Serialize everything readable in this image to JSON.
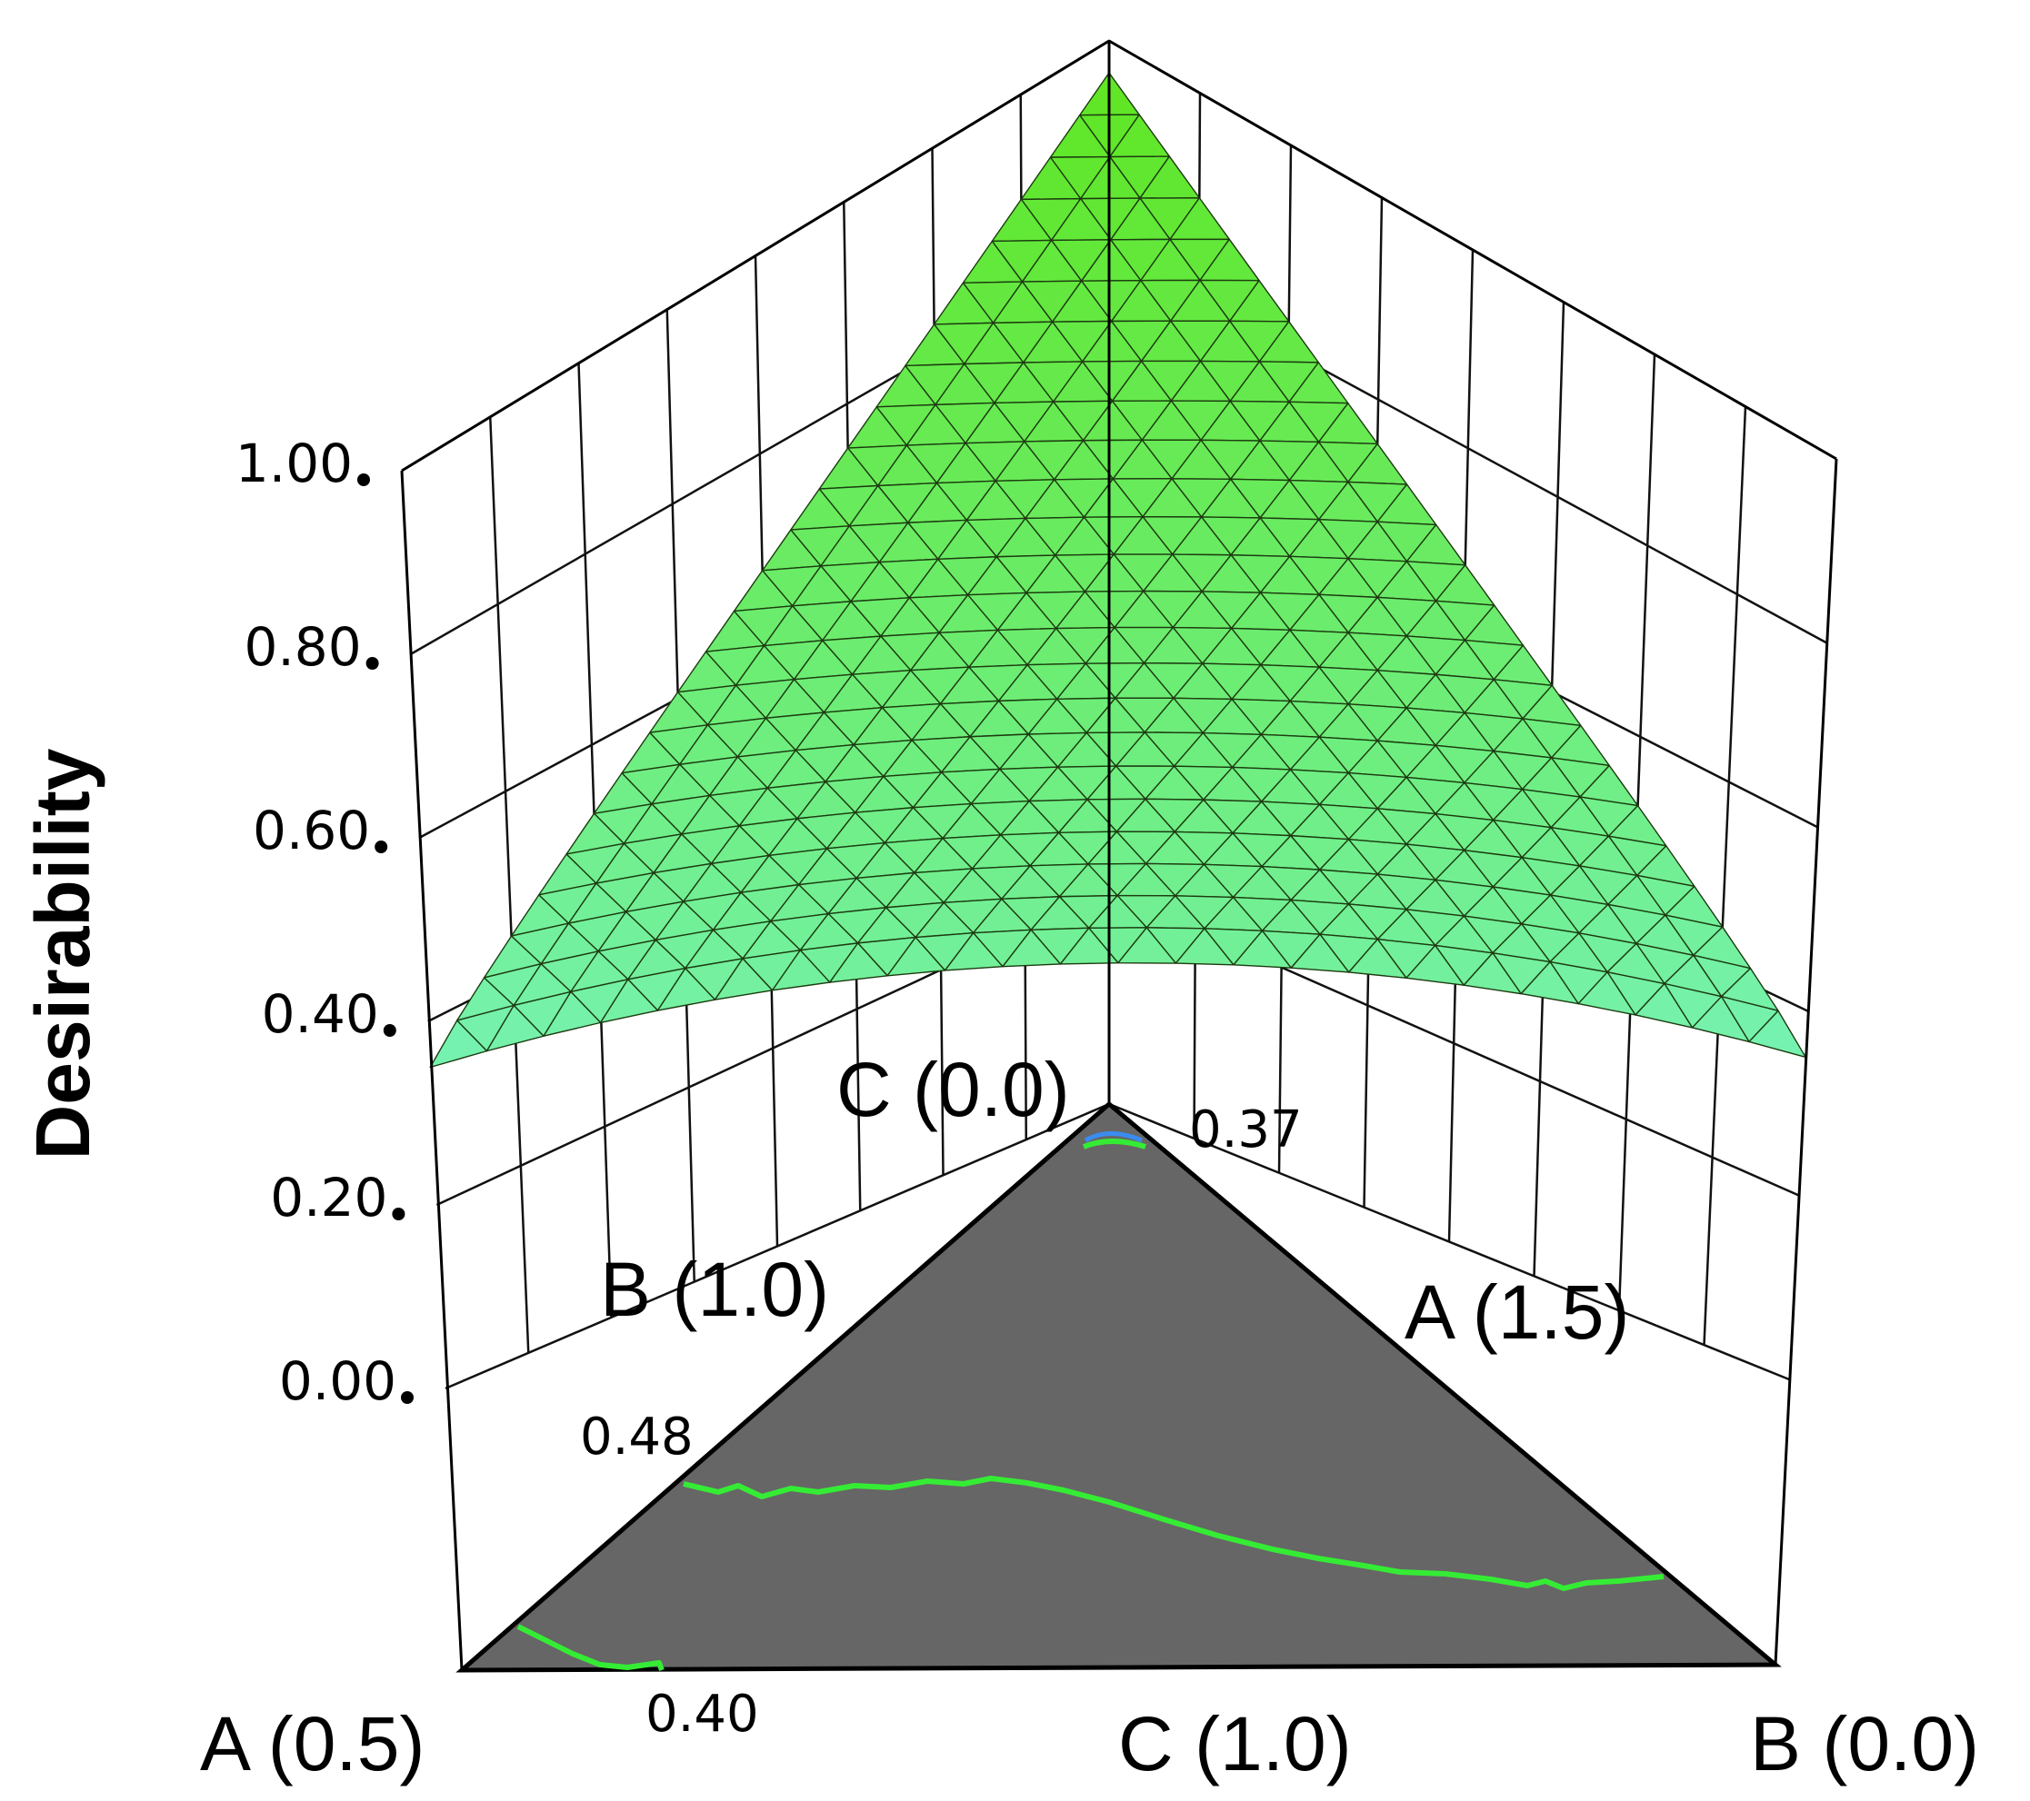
{
  "chart_data": {
    "type": "surface",
    "subtype": "ternary-mixture-response-surface",
    "zlabel": "Desirability",
    "zlim": [
      0.0,
      1.0
    ],
    "z_ticks": [
      "0.00",
      "0.20",
      "0.40",
      "0.60",
      "0.80",
      "1.00"
    ],
    "vertices": {
      "front_left": "A (0.5)",
      "front_right": "B (0.0)",
      "back": "C (0.0)",
      "edge_left_back": "B (1.0)",
      "edge_right_back": "A (1.5)",
      "edge_front": "C (1.0)"
    },
    "contours": [
      {
        "label": "0.37",
        "value": 0.37
      },
      {
        "label": "0.48",
        "value": 0.48
      },
      {
        "label": "0.40",
        "value": 0.4
      }
    ],
    "surface_peak": 0.97,
    "surface_min": 0.35,
    "base_color": "#666666",
    "surface_color_high": "#5fe622",
    "surface_color_low": "#77f2b4",
    "contour_color": "#35ec35",
    "grid": true
  }
}
